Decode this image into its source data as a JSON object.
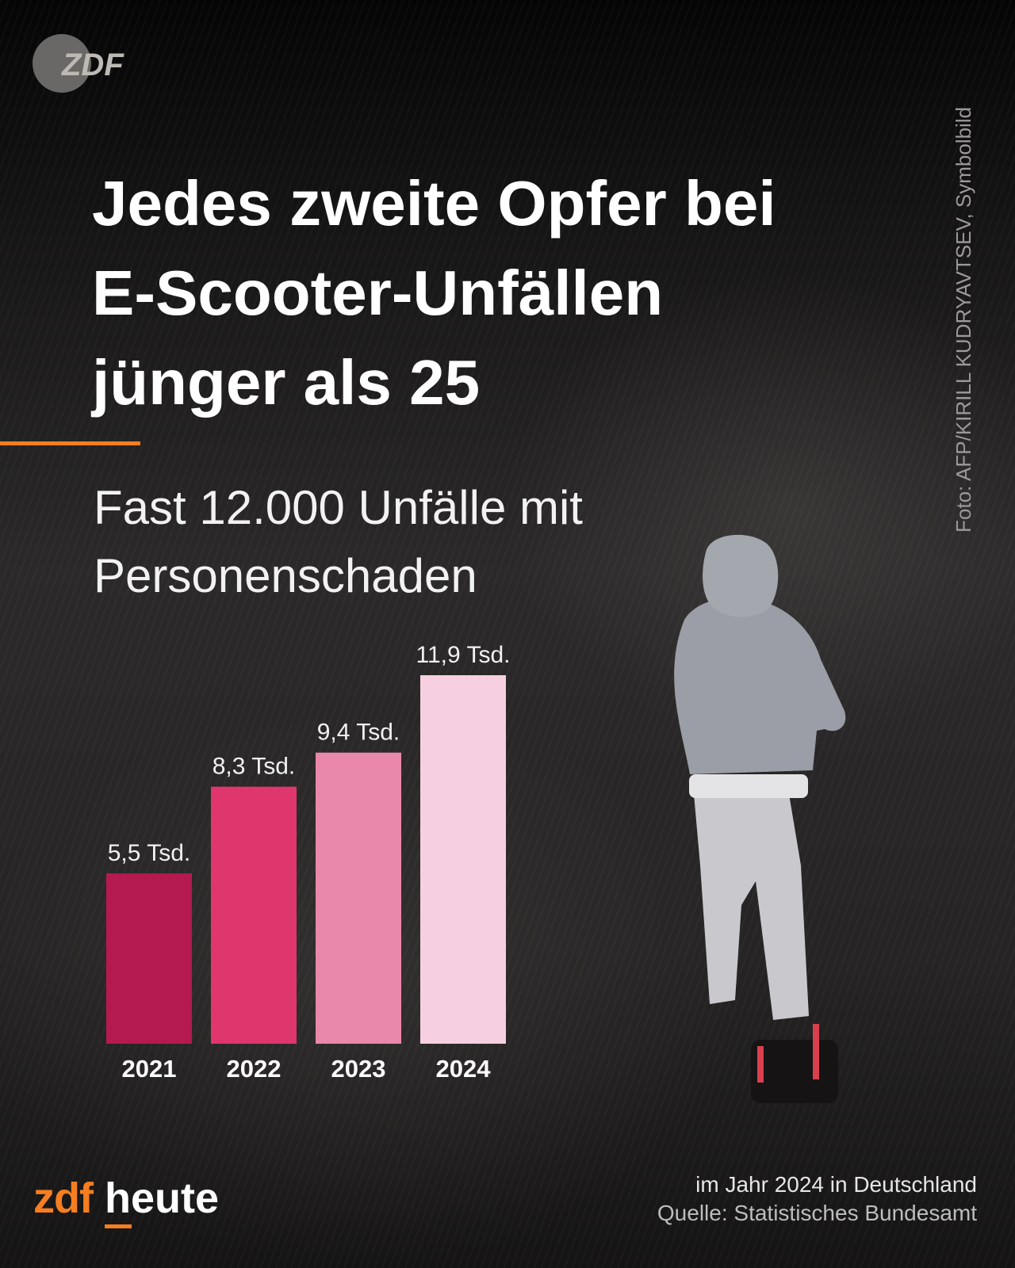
{
  "header": {
    "logo_text": "ZDF",
    "photo_credit": "Foto: AFP/KIRILL KUDRYAVTSEV, Symbolbild"
  },
  "headline": {
    "line1": "Jedes zweite Opfer bei",
    "line2": "E-Scooter-Unfällen",
    "line3": "jünger als 25"
  },
  "subheadline": {
    "line1": "Fast 12.000 Unfälle mit",
    "line2": "Personenschaden"
  },
  "chart_data": {
    "type": "bar",
    "categories": [
      "2021",
      "2022",
      "2023",
      "2024"
    ],
    "values": [
      5.5,
      8.3,
      9.4,
      11.9
    ],
    "data_labels": [
      "5,5 Tsd.",
      "8,3 Tsd.",
      "9,4 Tsd.",
      "11,9 Tsd."
    ],
    "colors": [
      "#b41a50",
      "#de366d",
      "#ea88ab",
      "#f6d0e0"
    ],
    "ylim": [
      0,
      11.9
    ],
    "grid": false
  },
  "footer": {
    "brand_zdf": "zdf",
    "brand_heute": "heute",
    "scope_note": "im Jahr 2024 in Deutschland",
    "source": "Quelle: Statistisches Bundesamt"
  },
  "colors": {
    "accent": "#f57e20",
    "background": "#1c1b1b"
  }
}
